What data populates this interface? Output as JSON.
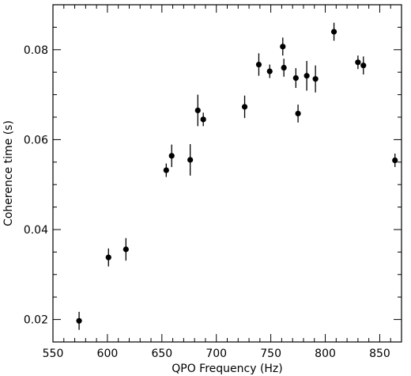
{
  "chart_data": {
    "type": "scatter",
    "title": "",
    "xlabel": "QPO Frequency (Hz)",
    "ylabel": "Coherence time (s)",
    "xlim": [
      550,
      870
    ],
    "ylim": [
      0.015,
      0.09
    ],
    "x_ticks": [
      550,
      600,
      650,
      700,
      750,
      800,
      850
    ],
    "x_tick_labels": [
      "550",
      "600",
      "650",
      "700",
      "750",
      "800",
      "850"
    ],
    "x_minor_step": 10,
    "y_ticks": [
      0.02,
      0.04,
      0.06,
      0.08
    ],
    "y_tick_labels": [
      "0.02",
      "0.04",
      "0.06",
      "0.08"
    ],
    "y_minor_step": 0.005,
    "grid": false,
    "series": [
      {
        "points": [
          {
            "x": 574,
            "y": 0.0197,
            "err": 0.002
          },
          {
            "x": 601,
            "y": 0.0338,
            "err": 0.002
          },
          {
            "x": 617,
            "y": 0.0356,
            "err": 0.0025
          },
          {
            "x": 654,
            "y": 0.0532,
            "err": 0.0015
          },
          {
            "x": 659,
            "y": 0.0564,
            "err": 0.0025
          },
          {
            "x": 676,
            "y": 0.0555,
            "err": 0.0035
          },
          {
            "x": 683,
            "y": 0.0665,
            "err": 0.0035
          },
          {
            "x": 688,
            "y": 0.0645,
            "err": 0.0015
          },
          {
            "x": 726,
            "y": 0.0673,
            "err": 0.0025
          },
          {
            "x": 739,
            "y": 0.0767,
            "err": 0.0025
          },
          {
            "x": 749,
            "y": 0.0752,
            "err": 0.0015
          },
          {
            "x": 761,
            "y": 0.0807,
            "err": 0.002
          },
          {
            "x": 762,
            "y": 0.076,
            "err": 0.002
          },
          {
            "x": 773,
            "y": 0.0737,
            "err": 0.0022
          },
          {
            "x": 775,
            "y": 0.0658,
            "err": 0.002
          },
          {
            "x": 783,
            "y": 0.0742,
            "err": 0.0033
          },
          {
            "x": 791,
            "y": 0.0735,
            "err": 0.003
          },
          {
            "x": 808,
            "y": 0.084,
            "err": 0.002
          },
          {
            "x": 830,
            "y": 0.0772,
            "err": 0.0015
          },
          {
            "x": 835,
            "y": 0.0765,
            "err": 0.002
          },
          {
            "x": 864,
            "y": 0.0554,
            "err": 0.0015
          }
        ]
      }
    ]
  }
}
